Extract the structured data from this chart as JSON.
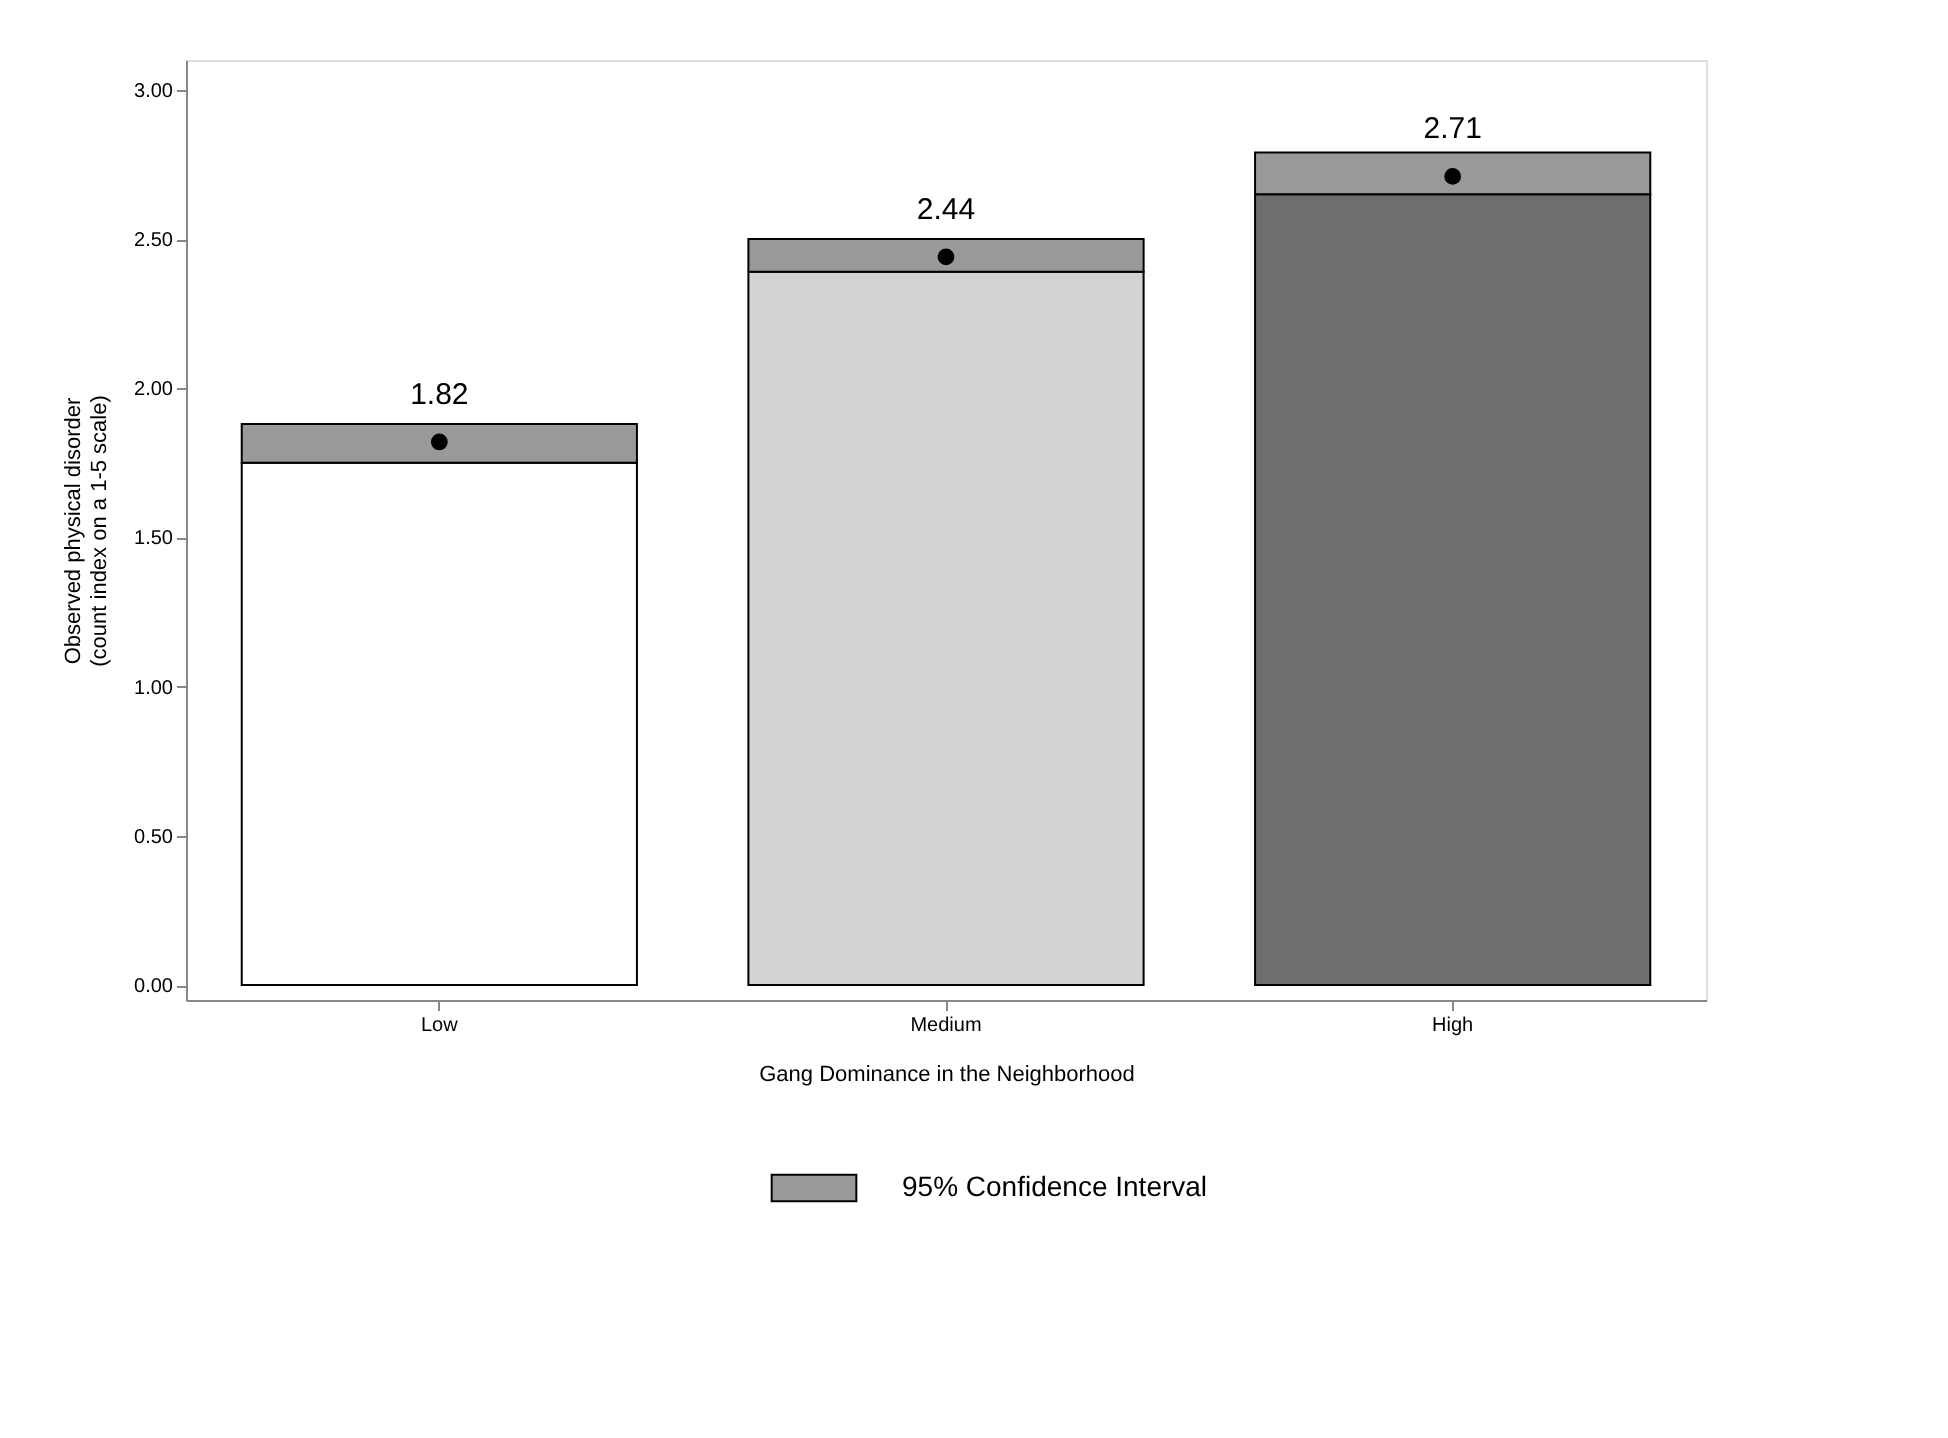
{
  "chart_data": {
    "type": "bar",
    "stacked": true,
    "xlabel": "Gang Dominance in the Neighborhood",
    "ylabel": "Observed physical disorder\n(count index on a 1-5 scale)",
    "categories": [
      "Low",
      "Medium",
      "High"
    ],
    "series": [
      {
        "colors": [
          "#ffffff",
          "#d3d3d3",
          "#6e6e6e"
        ],
        "values": [
          1.75,
          2.39,
          2.65
        ]
      },
      {
        "name": "95% Confidence Interval",
        "color": "#999999",
        "values": [
          0.13,
          0.11,
          0.14
        ]
      },
      {
        "type": "scatter",
        "color": "#000000",
        "values": [
          1.82,
          2.44,
          2.71
        ],
        "value_labels": [
          "1.82",
          "2.44",
          "2.71"
        ]
      }
    ],
    "ylim": [
      -0.05,
      3.1
    ],
    "yticks": [
      {
        "value": 0,
        "label": "0.00"
      },
      {
        "value": 0.5,
        "label": "0.50"
      },
      {
        "value": 1,
        "label": "1.00"
      },
      {
        "value": 1.5,
        "label": "1.50"
      },
      {
        "value": 2,
        "label": "2.00"
      },
      {
        "value": 2.5,
        "label": "2.50"
      },
      {
        "value": 3,
        "label": "3.00"
      }
    ],
    "grid": false,
    "legend": "bottom",
    "marker": "circle"
  }
}
